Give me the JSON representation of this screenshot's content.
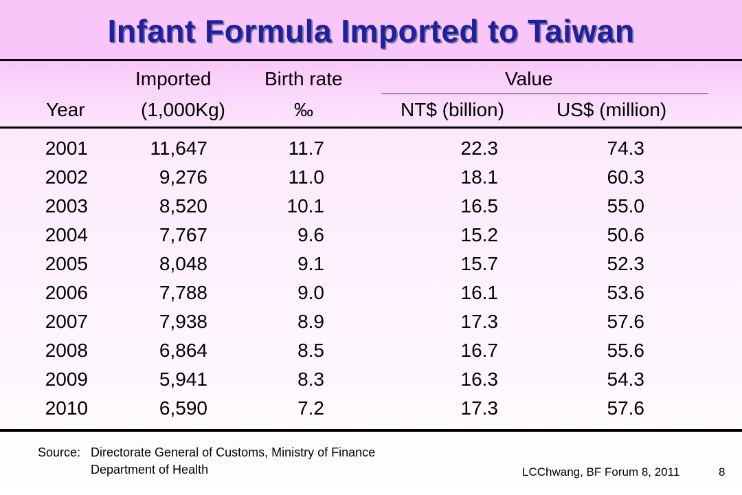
{
  "title": "Infant Formula Imported to Taiwan",
  "header": {
    "imported_top": "Imported",
    "imported_bottom": "(1,000Kg)",
    "birth_top": "Birth rate",
    "birth_bottom": "‰",
    "value_top": "Value",
    "year": "Year",
    "nt": "NT$ (billion)",
    "us": "US$ (million)"
  },
  "rows": [
    [
      "2001",
      "11,647",
      "11.7",
      "22.3",
      "74.3"
    ],
    [
      "2002",
      "9,276",
      "11.0",
      "18.1",
      "60.3"
    ],
    [
      "2003",
      "8,520",
      "10.1",
      "16.5",
      "55.0"
    ],
    [
      "2004",
      "7,767",
      "9.6",
      "15.2",
      "50.6"
    ],
    [
      "2005",
      "8,048",
      "9.1",
      "15.7",
      "52.3"
    ],
    [
      "2006",
      "7,788",
      "9.0",
      "16.1",
      "53.6"
    ],
    [
      "2007",
      "7,938",
      "8.9",
      "17.3",
      "57.6"
    ],
    [
      "2008",
      "6,864",
      "8.5",
      "16.7",
      "55.6"
    ],
    [
      "2009",
      "5,941",
      "8.3",
      "16.3",
      "54.3"
    ],
    [
      "2010",
      "6,590",
      "7.2",
      "17.3",
      "57.6"
    ]
  ],
  "source": {
    "label": "Source:",
    "line1": "Directorate General of Customs, Ministry of Finance",
    "line2": "Department of Health"
  },
  "footer": {
    "credit": "LCChwang, BF Forum 8, 2011",
    "page": "8"
  }
}
